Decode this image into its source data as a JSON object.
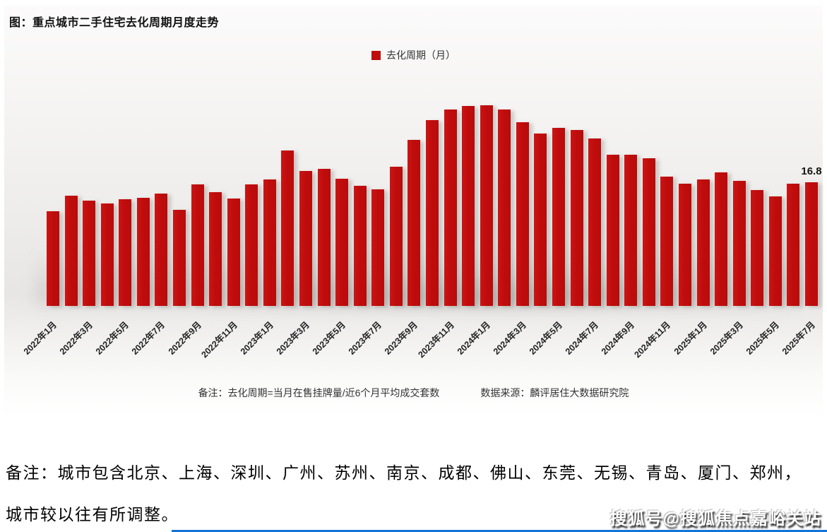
{
  "title": "图：重点城市二手住宅去化周期月度走势",
  "legend": {
    "label": "去化周期（月）",
    "swatch_color": "#C00D0D"
  },
  "chart_data": {
    "type": "bar",
    "title": "图：重点城市二手住宅去化周期月度走势",
    "xlabel": "",
    "ylabel": "去化周期（月）",
    "ylim": [
      0,
      28
    ],
    "grid": false,
    "legend_position": "top-center",
    "bar_color": "#C00D0D",
    "x": [
      "2022年1月",
      "2022年2月",
      "2022年3月",
      "2022年4月",
      "2022年5月",
      "2022年6月",
      "2022年7月",
      "2022年8月",
      "2022年9月",
      "2022年10月",
      "2022年11月",
      "2022年12月",
      "2023年1月",
      "2023年2月",
      "2023年3月",
      "2023年4月",
      "2023年5月",
      "2023年6月",
      "2023年7月",
      "2023年8月",
      "2023年9月",
      "2023年10月",
      "2023年11月",
      "2023年12月",
      "2024年1月",
      "2024年2月",
      "2024年3月",
      "2024年4月",
      "2024年5月",
      "2024年6月",
      "2024年7月",
      "2024年8月",
      "2024年9月",
      "2024年10月",
      "2024年11月",
      "2024年12月",
      "2025年1月",
      "2025年2月",
      "2025年3月",
      "2025年4月",
      "2025年5月",
      "2025年6月",
      "2025年7月"
    ],
    "series": [
      {
        "name": "去化周期（月）",
        "values": [
          12.9,
          15.0,
          14.3,
          13.9,
          14.5,
          14.7,
          15.3,
          13.1,
          16.5,
          15.5,
          14.6,
          16.5,
          17.2,
          21.2,
          18.4,
          18.7,
          17.3,
          16.3,
          15.9,
          18.9,
          22.6,
          25.3,
          26.7,
          27.2,
          27.3,
          26.7,
          25.0,
          23.5,
          24.2,
          23.9,
          22.8,
          20.6,
          20.6,
          20.1,
          17.6,
          16.6,
          17.2,
          18.2,
          17.0,
          15.8,
          14.9,
          16.6,
          16.8
        ]
      }
    ],
    "x_tick_labels": [
      "2022年1月",
      "2022年3月",
      "2022年5月",
      "2022年7月",
      "2022年9月",
      "2022年11月",
      "2023年1月",
      "2023年3月",
      "2023年5月",
      "2023年7月",
      "2023年9月",
      "2023年11月",
      "2024年1月",
      "2024年3月",
      "2024年5月",
      "2024年7月",
      "2024年9月",
      "2024年11月",
      "2025年1月",
      "2025年3月",
      "2025年5月",
      "2025年7月"
    ],
    "annotation": {
      "label": "16.8",
      "index": 42
    }
  },
  "notes": {
    "formula": "备注：去化周期=当月在售挂牌量/近6个月平均成交套数",
    "source": "数据来源：麟评居住大数据研究院"
  },
  "footer": {
    "line1": "备注：城市包含北京、上海、深圳、广州、苏州、南京、成都、佛山、东莞、无锡、青岛、厦门、郑州，",
    "line2": "城市较以往有所调整。"
  },
  "watermark": "搜狐号@搜狐焦点嘉峪关站"
}
